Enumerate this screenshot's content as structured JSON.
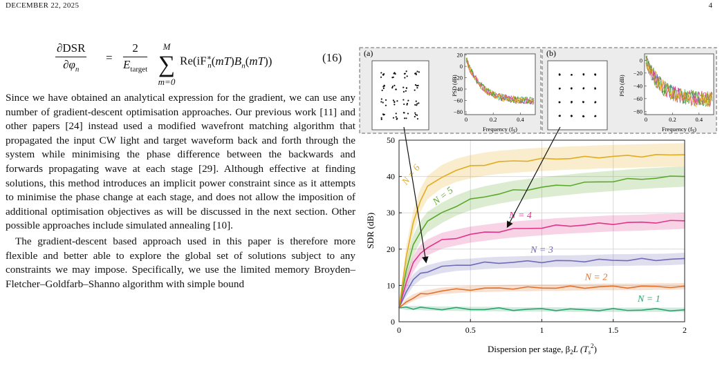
{
  "header": {
    "date": "DECEMBER 22, 2025",
    "page_number": "4"
  },
  "equation": {
    "lhs_num": "∂DSR",
    "lhs_den": "∂φ",
    "lhs_den_sub": "n",
    "equals": "=",
    "coef_num": "2",
    "coef_den": "E",
    "coef_den_sub": "target",
    "sum_upper": "M",
    "sum_lower": "m=0",
    "body": "Re(iF",
    "number": "(16)"
  },
  "paragraphs": [
    "Since we have obtained an analytical expression for the gradient, we can use any number of gradient-descent optimisation approaches. Our previous work [11] and other papers [24] instead used a modified wavefront matching algorithm that propagated the input CW light and target waveform back and forth through the system while minimising the phase difference between the backwards and forwards propagating wave at each stage [29]. Although effective at finding solutions, this method introduces an implicit power constraint since as it attempts to minimise the phase change at each stage, and does not allow the imposition of additional optimisation objectives as will be discussed in the next section. Other possible approaches include simulated annealing [10].",
    "The gradient-descent based approach used in this paper is therefore more flexible and better able to explore the global set of solutions subject to any constraints we may impose. Specifically, we use the limited memory Broyden–Fletcher–Goldfarb–Shanno algorithm with simple bound"
  ],
  "figure": {
    "inset_a_label": "(a)",
    "inset_b_label": "(b)",
    "psd_ylabel": "PSD (dB)",
    "psd_xlabel": "Frequency (f",
    "psd_xlabel_sub": "S",
    "psd_xlabel_close": ")",
    "psd_xticks": [
      "0",
      "0.2",
      "0.4"
    ],
    "psd_yticks_a": [
      "20",
      "0",
      "−20",
      "−40",
      "−60",
      "−80"
    ],
    "psd_yticks_b": [
      "0",
      "−20",
      "−40",
      "−60",
      "−80"
    ],
    "colors": {
      "N1": "#2aa36b",
      "N2": "#e0702a",
      "N3": "#6f6ab5",
      "N4": "#e0338a",
      "N5": "#5aa82a",
      "N6": "#e2ab1e"
    }
  },
  "chart_data": {
    "type": "line",
    "xlabel": "Dispersion per stage, β",
    "xlabel_sub": "2",
    "xlabel_tail": "L (T",
    "xlabel_sub2": "s",
    "xlabel_sup2": "2",
    "xlabel_close": ")",
    "ylabel": "SDR (dB)",
    "xlim": [
      0,
      2
    ],
    "ylim": [
      0,
      50
    ],
    "xticks": [
      "0",
      "0.5",
      "1",
      "1.5",
      "2"
    ],
    "yticks": [
      "0",
      "10",
      "20",
      "30",
      "40",
      "50"
    ],
    "grid": true,
    "x": [
      0,
      0.05,
      0.1,
      0.15,
      0.2,
      0.3,
      0.4,
      0.5,
      0.6,
      0.7,
      0.8,
      0.9,
      1.0,
      1.1,
      1.2,
      1.3,
      1.4,
      1.5,
      1.6,
      1.7,
      1.8,
      1.9,
      2.0
    ],
    "series": [
      {
        "name": "N = 1",
        "color": "#2aa36b",
        "label_x": 1.75,
        "label_y": 5.5,
        "values": [
          3.8,
          3.8,
          3.8,
          3.8,
          3.7,
          3.6,
          3.6,
          3.5,
          3.5,
          3.5,
          3.4,
          3.4,
          3.4,
          3.4,
          3.3,
          3.3,
          3.3,
          3.3,
          3.3,
          3.3,
          3.3,
          3.3,
          3.3
        ],
        "band": 0.6
      },
      {
        "name": "N = 2",
        "color": "#e0702a",
        "label_x": 1.38,
        "label_y": 11.5,
        "values": [
          3.8,
          5.5,
          6.7,
          7.4,
          7.9,
          8.5,
          8.8,
          9.0,
          9.1,
          9.2,
          9.3,
          9.3,
          9.4,
          9.4,
          9.5,
          9.5,
          9.6,
          9.6,
          9.6,
          9.6,
          9.7,
          9.7,
          9.8
        ],
        "band": 0.9
      },
      {
        "name": "N = 3",
        "color": "#6f6ab5",
        "label_x": 1.0,
        "label_y": 19.0,
        "values": [
          3.8,
          8.5,
          11.5,
          13.2,
          14.0,
          15.0,
          15.6,
          15.8,
          16.1,
          16.3,
          16.4,
          16.5,
          16.6,
          16.7,
          16.7,
          16.8,
          16.9,
          17.0,
          17.0,
          17.1,
          17.1,
          17.2,
          17.4
        ],
        "band": 1.6
      },
      {
        "name": "N = 4",
        "color": "#e0338a",
        "label_x": 0.85,
        "label_y": 28.5,
        "values": [
          3.8,
          11.0,
          16.0,
          19.0,
          20.5,
          22.3,
          23.2,
          24.0,
          24.5,
          25.0,
          25.4,
          25.7,
          26.0,
          26.3,
          26.5,
          26.7,
          26.9,
          27.1,
          27.2,
          27.3,
          27.5,
          27.6,
          27.8
        ],
        "band": 2.2
      },
      {
        "name": "N = 5",
        "color": "#5aa82a",
        "label_x": 0.32,
        "label_y": 34.0,
        "values": [
          3.8,
          14.0,
          21.0,
          25.0,
          27.5,
          30.0,
          32.0,
          33.5,
          34.5,
          35.3,
          36.0,
          36.5,
          37.0,
          37.4,
          37.8,
          38.2,
          38.5,
          38.8,
          39.1,
          39.4,
          39.6,
          39.8,
          40.0
        ],
        "band": 2.8
      },
      {
        "name": "N = 6",
        "color": "#e2ab1e",
        "label_x": 0.1,
        "label_y": 40.0,
        "values": [
          3.8,
          17.5,
          27.5,
          33.5,
          37.0,
          40.0,
          41.7,
          42.7,
          43.4,
          43.9,
          44.2,
          44.5,
          44.7,
          44.9,
          45.1,
          45.2,
          45.4,
          45.5,
          45.6,
          45.7,
          45.8,
          45.9,
          46.0
        ],
        "band": 3.2
      }
    ]
  }
}
